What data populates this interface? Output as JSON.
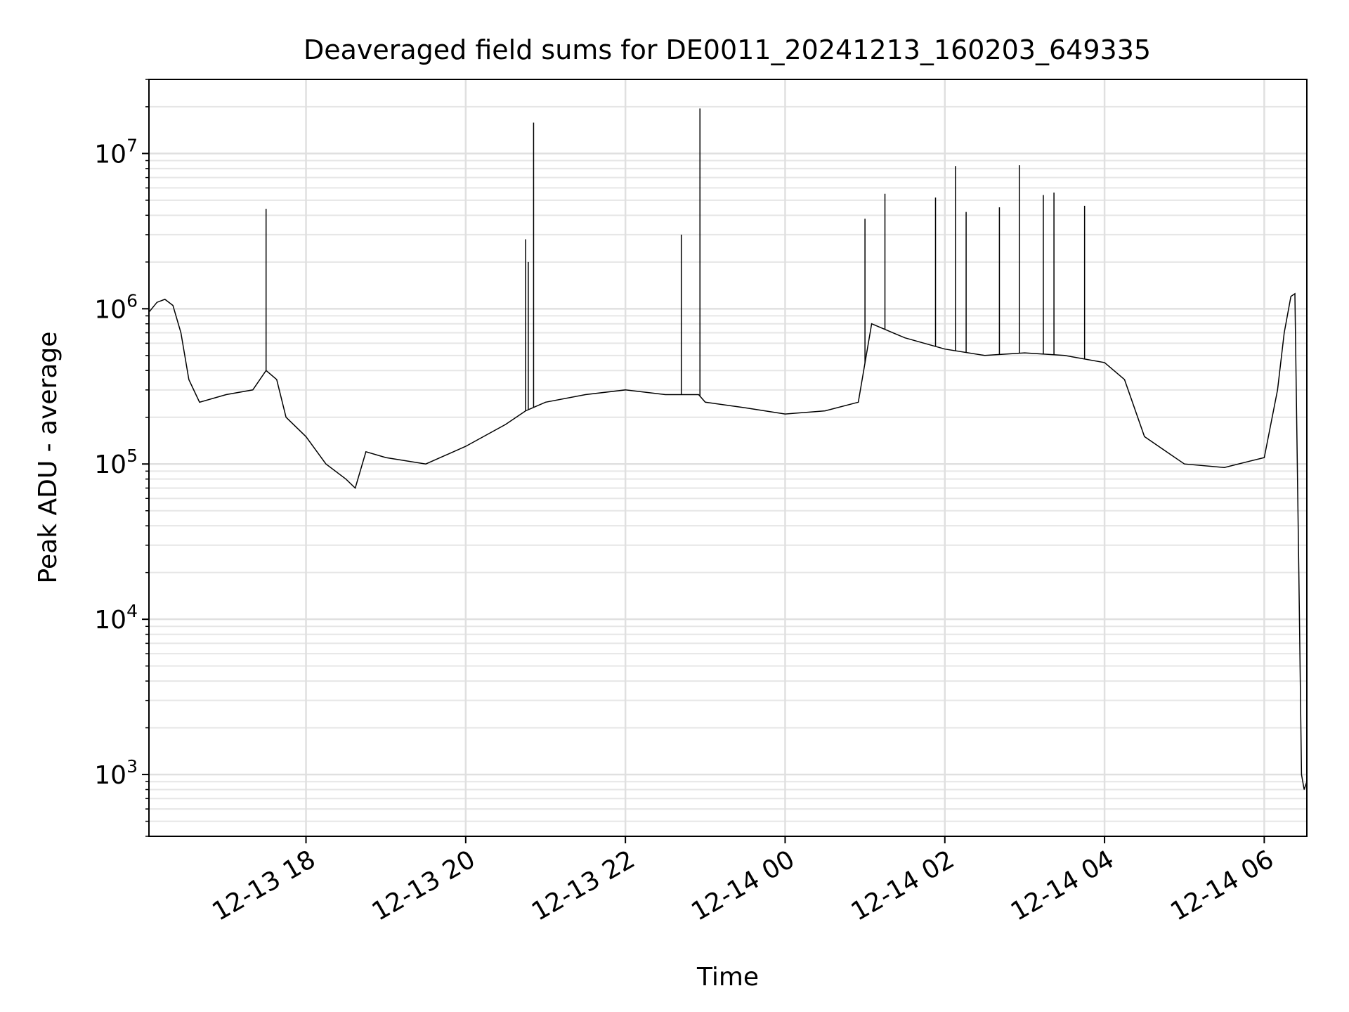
{
  "chart_data": {
    "type": "line",
    "title": "Deaveraged field sums for DE0011_20241213_160203_649335",
    "xlabel": "Time",
    "ylabel": "Peak ADU - average",
    "yscale": "log",
    "xlim": [
      "2024-12-13 16:02",
      "2024-12-14 06:32"
    ],
    "ylim": [
      400,
      30000000
    ],
    "grid": true,
    "x_tick_labels": [
      "12-13 18",
      "12-13 20",
      "12-13 22",
      "12-14 00",
      "12-14 02",
      "12-14 04",
      "12-14 06"
    ],
    "x_ticks": [
      "2024-12-13 18:00",
      "2024-12-13 20:00",
      "2024-12-13 22:00",
      "2024-12-14 00:00",
      "2024-12-14 02:00",
      "2024-12-14 04:00",
      "2024-12-14 06:00"
    ],
    "y_tick_labels": [
      {
        "base": "10",
        "exp": "3",
        "value": 1000
      },
      {
        "base": "10",
        "exp": "4",
        "value": 10000
      },
      {
        "base": "10",
        "exp": "5",
        "value": 100000
      },
      {
        "base": "10",
        "exp": "6",
        "value": 1000000
      },
      {
        "base": "10",
        "exp": "7",
        "value": 10000000
      }
    ],
    "series": [
      {
        "color": "#000000",
        "x": [
          "2024-12-13 16:02",
          "2024-12-13 16:08",
          "2024-12-13 16:14",
          "2024-12-13 16:20",
          "2024-12-13 16:26",
          "2024-12-13 16:32",
          "2024-12-13 16:40",
          "2024-12-13 17:00",
          "2024-12-13 17:20",
          "2024-12-13 17:30",
          "2024-12-13 17:38",
          "2024-12-13 17:45",
          "2024-12-13 18:00",
          "2024-12-13 18:15",
          "2024-12-13 18:30",
          "2024-12-13 18:37",
          "2024-12-13 18:45",
          "2024-12-13 19:00",
          "2024-12-13 19:30",
          "2024-12-13 20:00",
          "2024-12-13 20:30",
          "2024-12-13 20:45",
          "2024-12-13 21:00",
          "2024-12-13 21:30",
          "2024-12-13 22:00",
          "2024-12-13 22:30",
          "2024-12-13 22:55",
          "2024-12-13 23:00",
          "2024-12-13 23:30",
          "2024-12-14 00:00",
          "2024-12-14 00:30",
          "2024-12-14 00:55",
          "2024-12-14 01:05",
          "2024-12-14 01:30",
          "2024-12-14 02:00",
          "2024-12-14 02:30",
          "2024-12-14 03:00",
          "2024-12-14 03:30",
          "2024-12-14 04:00",
          "2024-12-14 04:15",
          "2024-12-14 04:30",
          "2024-12-14 05:00",
          "2024-12-14 05:30",
          "2024-12-14 06:00",
          "2024-12-14 06:10",
          "2024-12-14 06:15",
          "2024-12-14 06:20",
          "2024-12-14 06:23",
          "2024-12-14 06:26",
          "2024-12-14 06:28",
          "2024-12-14 06:30",
          "2024-12-14 06:32"
        ],
        "y": [
          950000,
          1100000,
          1150000,
          1050000,
          700000,
          350000,
          250000,
          280000,
          300000,
          400000,
          350000,
          200000,
          150000,
          100000,
          80000,
          70000,
          120000,
          110000,
          100000,
          130000,
          180000,
          220000,
          250000,
          280000,
          300000,
          280000,
          280000,
          250000,
          230000,
          210000,
          220000,
          250000,
          800000,
          650000,
          550000,
          500000,
          520000,
          500000,
          450000,
          350000,
          150000,
          100000,
          95000,
          110000,
          300000,
          700000,
          1200000,
          1250000,
          20000,
          1000,
          800,
          900
        ]
      }
    ],
    "spikes": [
      {
        "x": "2024-12-13 17:30",
        "y": 4400000
      },
      {
        "x": "2024-12-13 20:45",
        "y": 2800000
      },
      {
        "x": "2024-12-13 20:47",
        "y": 2000000
      },
      {
        "x": "2024-12-13 20:51",
        "y": 15800000
      },
      {
        "x": "2024-12-13 22:42",
        "y": 3000000
      },
      {
        "x": "2024-12-13 22:56",
        "y": 19500000
      },
      {
        "x": "2024-12-14 01:00",
        "y": 3800000
      },
      {
        "x": "2024-12-14 01:15",
        "y": 5500000
      },
      {
        "x": "2024-12-14 01:53",
        "y": 5200000
      },
      {
        "x": "2024-12-14 02:08",
        "y": 8300000
      },
      {
        "x": "2024-12-14 02:16",
        "y": 4200000
      },
      {
        "x": "2024-12-14 02:41",
        "y": 4500000
      },
      {
        "x": "2024-12-14 02:56",
        "y": 8400000
      },
      {
        "x": "2024-12-14 03:14",
        "y": 5400000
      },
      {
        "x": "2024-12-14 03:22",
        "y": 5600000
      },
      {
        "x": "2024-12-14 03:45",
        "y": 4600000
      }
    ]
  }
}
